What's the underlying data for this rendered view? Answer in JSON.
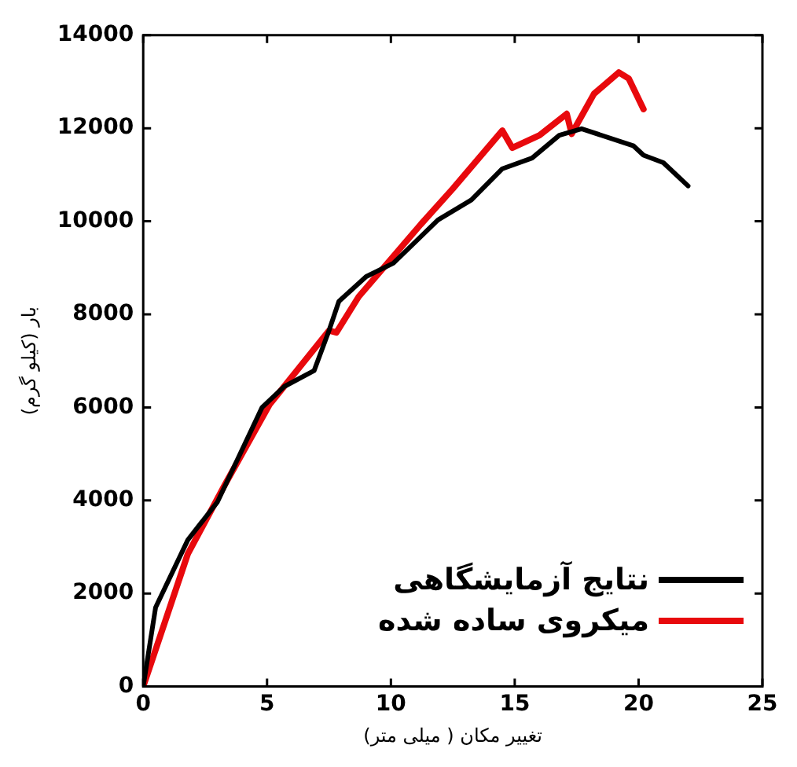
{
  "chart_data": {
    "type": "line",
    "xlabel": "تغییر مکان ( میلی متر)",
    "ylabel": "بار (کیلو گرم)",
    "xlim": [
      0,
      25
    ],
    "xticks": [
      0,
      5,
      10,
      15,
      20,
      25
    ],
    "ylim": [
      0,
      14000
    ],
    "yticks": [
      0,
      2000,
      4000,
      6000,
      8000,
      10000,
      12000,
      14000
    ],
    "grid": false,
    "legend": "bottom right",
    "marker": "none",
    "line_style": "solid",
    "series": [
      {
        "name": "نتایج آزمایشگاهی",
        "color": "#000000",
        "x": [
          0,
          0.5,
          1.8,
          3.0,
          4.8,
          5.7,
          6.9,
          7.5,
          7.9,
          9.0,
          10.1,
          11.9,
          13.25,
          14.5,
          15.7,
          16.8,
          17.7,
          19.8,
          20.2,
          21.0,
          22.0
        ],
        "values": [
          0,
          1700,
          3150,
          3970,
          6000,
          6450,
          6790,
          7650,
          8280,
          8810,
          9100,
          10030,
          10460,
          11130,
          11360,
          11850,
          11990,
          11620,
          11420,
          11260,
          10760
        ]
      },
      {
        "name": "میکروی ساده شده",
        "color": "#e8090d",
        "x": [
          0,
          1.8,
          3.3,
          5.1,
          7.5,
          7.8,
          8.7,
          11.2,
          12.5,
          14.5,
          14.9,
          16.0,
          17.1,
          17.3,
          18.2,
          19.2,
          19.6,
          20.2
        ],
        "values": [
          0,
          2850,
          4340,
          6060,
          7650,
          7610,
          8380,
          9930,
          10700,
          11950,
          11580,
          11850,
          12310,
          11880,
          12740,
          13200,
          13070,
          12410
        ]
      }
    ]
  }
}
